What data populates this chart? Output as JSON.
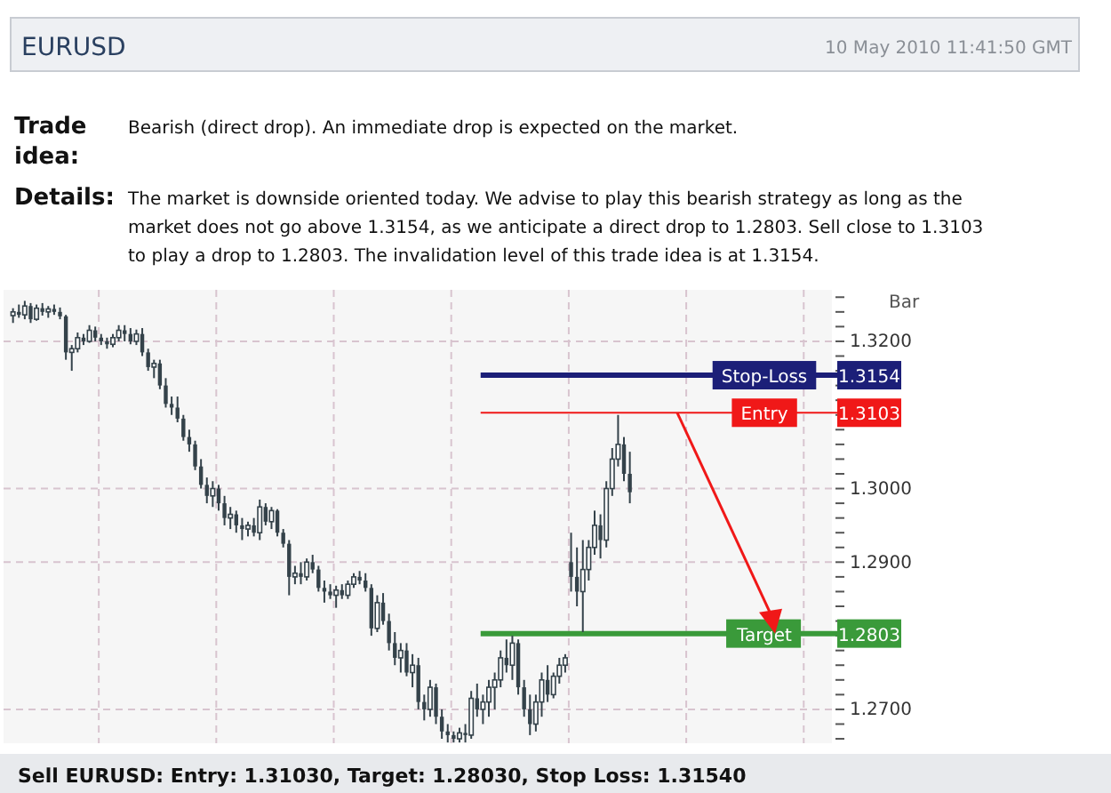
{
  "chart_data": {
    "type": "candlestick",
    "title": "EURUSD",
    "subtitle": "10 May 2010 11:41:50 GMT",
    "annotations": [
      "Trade idea:",
      "Bearish (direct drop). An immediate drop is expected on the market.",
      "Details:",
      "The market is downside oriented today. We advise to play this bearish strategy as long as the market does not go above 1.3154, as we anticipate a direct drop to 1.2803. Sell close to 1.3103 to play a drop to 1.2803. The invalidation level of this trade idea is at 1.3154.",
      "Bar",
      "Sell EURUSD: Entry: 1.31030, Target: 1.28030, Stop Loss: 1.31540",
      {
        "text": "1.3154",
        "y": 1.3154
      },
      {
        "text": "1.3103",
        "y": 1.3103
      },
      {
        "text": "1.2803",
        "y": 1.2803
      }
    ],
    "color": "#34424a",
    "categories": [
      null,
      null,
      null,
      null,
      null,
      null,
      null,
      null,
      null,
      null,
      null,
      null,
      null,
      null,
      null,
      null,
      null,
      null,
      null,
      null,
      null,
      null,
      null,
      null,
      null,
      null,
      null,
      null,
      null,
      null,
      null,
      null,
      null,
      null,
      null,
      null,
      null,
      null,
      null,
      null,
      null,
      null,
      null,
      null,
      null,
      null,
      null,
      null,
      null,
      null,
      null,
      null,
      null,
      null,
      null,
      null,
      null,
      null,
      null,
      null,
      null,
      null,
      null,
      null,
      null,
      null,
      null,
      null,
      null,
      null,
      null,
      null,
      null,
      null,
      null,
      null,
      null,
      null,
      null,
      null,
      null,
      null,
      null,
      null,
      null,
      null,
      null,
      null,
      null,
      null,
      null,
      null,
      null,
      null,
      null,
      null,
      null,
      null,
      null,
      null,
      null,
      null,
      null,
      null,
      null,
      null,
      null,
      null,
      null,
      null,
      null,
      null,
      null,
      null,
      null,
      null,
      null,
      null,
      null,
      null,
      null,
      null,
      null,
      null,
      null,
      null,
      null,
      null,
      null,
      null,
      null,
      null,
      null,
      null,
      null,
      null,
      null,
      null,
      null,
      null
    ],
    "ohlc": [
      [
        1.3235,
        1.3245,
        1.3225,
        1.324
      ],
      [
        1.324,
        1.325,
        1.3232,
        1.3236
      ],
      [
        1.3236,
        1.3255,
        1.323,
        1.3248
      ],
      [
        1.3248,
        1.3252,
        1.3225,
        1.323
      ],
      [
        1.323,
        1.325,
        1.3228,
        1.3245
      ],
      [
        1.3245,
        1.3252,
        1.3235,
        1.324
      ],
      [
        1.324,
        1.3248,
        1.3232,
        1.3244
      ],
      [
        1.3244,
        1.325,
        1.3236,
        1.324
      ],
      [
        1.324,
        1.3246,
        1.323,
        1.3234
      ],
      [
        1.3234,
        1.3236,
        1.3175,
        1.3185
      ],
      [
        1.3185,
        1.3195,
        1.316,
        1.319
      ],
      [
        1.319,
        1.3212,
        1.3185,
        1.3205
      ],
      [
        1.3205,
        1.321,
        1.3195,
        1.32
      ],
      [
        1.32,
        1.3222,
        1.3198,
        1.3215
      ],
      [
        1.3215,
        1.322,
        1.32,
        1.3205
      ],
      [
        1.3205,
        1.321,
        1.3195,
        1.32
      ],
      [
        1.32,
        1.3205,
        1.319,
        1.3196
      ],
      [
        1.3196,
        1.321,
        1.3192,
        1.3205
      ],
      [
        1.3205,
        1.3222,
        1.32,
        1.3215
      ],
      [
        1.3215,
        1.3222,
        1.32,
        1.321
      ],
      [
        1.321,
        1.3218,
        1.3196,
        1.32
      ],
      [
        1.32,
        1.3216,
        1.3195,
        1.321
      ],
      [
        1.321,
        1.3218,
        1.318,
        1.3185
      ],
      [
        1.3185,
        1.319,
        1.316,
        1.3165
      ],
      [
        1.3165,
        1.3175,
        1.315,
        1.317
      ],
      [
        1.317,
        1.3175,
        1.3135,
        1.314
      ],
      [
        1.314,
        1.315,
        1.311,
        1.3115
      ],
      [
        1.3115,
        1.3125,
        1.31,
        1.311
      ],
      [
        1.311,
        1.3125,
        1.309,
        1.3095
      ],
      [
        1.3095,
        1.31,
        1.3065,
        1.307
      ],
      [
        1.307,
        1.308,
        1.305,
        1.306
      ],
      [
        1.306,
        1.3065,
        1.3025,
        1.303
      ],
      [
        1.303,
        1.304,
        1.3,
        1.3005
      ],
      [
        1.3005,
        1.3015,
        1.298,
        1.299
      ],
      [
        1.299,
        1.301,
        1.2975,
        1.3
      ],
      [
        1.3,
        1.3005,
        1.297,
        1.298
      ],
      [
        1.298,
        1.299,
        1.295,
        1.296
      ],
      [
        1.296,
        1.2975,
        1.2945,
        1.2965
      ],
      [
        1.2965,
        1.297,
        1.294,
        1.295
      ],
      [
        1.295,
        1.296,
        1.293,
        1.2945
      ],
      [
        1.2945,
        1.2955,
        1.2935,
        1.295
      ],
      [
        1.295,
        1.296,
        1.2935,
        1.294
      ],
      [
        1.294,
        1.2985,
        1.293,
        1.2975
      ],
      [
        1.2975,
        1.298,
        1.295,
        1.2955
      ],
      [
        1.2955,
        1.2975,
        1.2945,
        1.297
      ],
      [
        1.297,
        1.2972,
        1.2935,
        1.294
      ],
      [
        1.294,
        1.2945,
        1.292,
        1.2925
      ],
      [
        1.2925,
        1.293,
        1.2855,
        1.288
      ],
      [
        1.288,
        1.2895,
        1.287,
        1.2885
      ],
      [
        1.2885,
        1.29,
        1.287,
        1.288
      ],
      [
        1.288,
        1.2905,
        1.2875,
        1.29
      ],
      [
        1.29,
        1.291,
        1.2885,
        1.289
      ],
      [
        1.289,
        1.2895,
        1.286,
        1.2865
      ],
      [
        1.2865,
        1.2875,
        1.2845,
        1.286
      ],
      [
        1.286,
        1.287,
        1.285,
        1.2855
      ],
      [
        1.2855,
        1.2868,
        1.2838,
        1.2862
      ],
      [
        1.2862,
        1.287,
        1.285,
        1.2855
      ],
      [
        1.2855,
        1.2875,
        1.285,
        1.287
      ],
      [
        1.287,
        1.2885,
        1.2865,
        1.288
      ],
      [
        1.288,
        1.2888,
        1.287,
        1.2875
      ],
      [
        1.2875,
        1.2885,
        1.286,
        1.2865
      ],
      [
        1.2865,
        1.287,
        1.28,
        1.281
      ],
      [
        1.281,
        1.2855,
        1.2805,
        1.2845
      ],
      [
        1.2845,
        1.2858,
        1.2815,
        1.282
      ],
      [
        1.282,
        1.283,
        1.278,
        1.279
      ],
      [
        1.279,
        1.2805,
        1.276,
        1.277
      ],
      [
        1.277,
        1.279,
        1.275,
        1.278
      ],
      [
        1.278,
        1.279,
        1.2745,
        1.275
      ],
      [
        1.275,
        1.2775,
        1.273,
        1.276
      ],
      [
        1.276,
        1.277,
        1.27,
        1.271
      ],
      [
        1.271,
        1.272,
        1.2685,
        1.27
      ],
      [
        1.27,
        1.274,
        1.269,
        1.273
      ],
      [
        1.273,
        1.2735,
        1.268,
        1.269
      ],
      [
        1.269,
        1.27,
        1.266,
        1.267
      ],
      [
        1.267,
        1.268,
        1.2655,
        1.2665
      ],
      [
        1.2665,
        1.267,
        1.2655,
        1.266
      ],
      [
        1.266,
        1.2675,
        1.2655,
        1.2668
      ],
      [
        1.2668,
        1.268,
        1.2655,
        1.2665
      ],
      [
        1.2665,
        1.2725,
        1.266,
        1.2715
      ],
      [
        1.2715,
        1.2735,
        1.269,
        1.27
      ],
      [
        1.27,
        1.272,
        1.268,
        1.271
      ],
      [
        1.271,
        1.274,
        1.269,
        1.273
      ],
      [
        1.273,
        1.275,
        1.27,
        1.274
      ],
      [
        1.274,
        1.278,
        1.273,
        1.277
      ],
      [
        1.277,
        1.2795,
        1.275,
        1.276
      ],
      [
        1.276,
        1.28,
        1.274,
        1.279
      ],
      [
        1.279,
        1.2795,
        1.272,
        1.273
      ],
      [
        1.273,
        1.274,
        1.269,
        1.27
      ],
      [
        1.27,
        1.272,
        1.2665,
        1.268
      ],
      [
        1.268,
        1.272,
        1.267,
        1.271
      ],
      [
        1.271,
        1.275,
        1.269,
        1.274
      ],
      [
        1.274,
        1.276,
        1.271,
        1.272
      ],
      [
        1.272,
        1.275,
        1.2715,
        1.2745
      ],
      [
        1.2745,
        1.277,
        1.2735,
        1.276
      ],
      [
        1.276,
        1.2775,
        1.275,
        1.277
      ],
      [
        1.29,
        1.294,
        1.286,
        1.288
      ],
      [
        1.288,
        1.292,
        1.284,
        1.286
      ],
      [
        1.286,
        1.293,
        1.2805,
        1.289
      ],
      [
        1.289,
        1.293,
        1.2875,
        1.292
      ],
      [
        1.292,
        1.297,
        1.291,
        1.295
      ],
      [
        1.295,
        1.2965,
        1.2905,
        1.293
      ],
      [
        1.293,
        1.301,
        1.292,
        1.3
      ],
      [
        1.3,
        1.3055,
        1.299,
        1.304
      ],
      [
        1.304,
        1.31,
        1.303,
        1.306
      ],
      [
        1.306,
        1.307,
        1.301,
        1.302
      ],
      [
        1.302,
        1.305,
        1.298,
        1.2995
      ],
      null,
      null,
      null,
      null,
      null,
      null,
      null,
      null,
      null,
      null,
      null,
      null,
      null,
      null,
      null,
      null,
      null,
      null,
      null,
      null,
      null,
      null,
      null,
      null,
      null,
      null,
      null,
      null,
      null,
      null,
      null,
      null,
      null,
      null
    ],
    "ylim": [
      1.2654,
      1.327
    ],
    "yticks": [
      {
        "value": 1.266,
        "label": null
      },
      {
        "value": 1.268,
        "label": null
      },
      {
        "value": 1.27,
        "label": "1.2700"
      },
      {
        "value": 1.272,
        "label": null
      },
      {
        "value": 1.274,
        "label": null
      },
      {
        "value": 1.276,
        "label": null
      },
      {
        "value": 1.278,
        "label": null
      },
      {
        "value": 1.28,
        "label": null
      },
      {
        "value": 1.282,
        "label": null
      },
      {
        "value": 1.284,
        "label": null
      },
      {
        "value": 1.286,
        "label": null
      },
      {
        "value": 1.288,
        "label": null
      },
      {
        "value": 1.29,
        "label": "1.2900"
      },
      {
        "value": 1.292,
        "label": null
      },
      {
        "value": 1.294,
        "label": null
      },
      {
        "value": 1.296,
        "label": null
      },
      {
        "value": 1.298,
        "label": null
      },
      {
        "value": 1.3,
        "label": "1.3000"
      },
      {
        "value": 1.302,
        "label": null
      },
      {
        "value": 1.304,
        "label": null
      },
      {
        "value": 1.306,
        "label": null
      },
      {
        "value": 1.308,
        "label": null
      },
      {
        "value": 1.31,
        "label": null
      },
      {
        "value": 1.312,
        "label": null
      },
      {
        "value": 1.314,
        "label": null
      },
      {
        "value": 1.316,
        "label": null
      },
      {
        "value": 1.318,
        "label": null
      },
      {
        "value": 1.32,
        "label": "1.3200"
      },
      {
        "value": 1.322,
        "label": null
      },
      {
        "value": 1.324,
        "label": null
      },
      {
        "value": 1.326,
        "label": null
      }
    ],
    "grid": true,
    "ref_lines": [
      {
        "axis": "y",
        "value": 1.3154,
        "label": "Stop-Loss",
        "color": "#1c1f78"
      },
      {
        "axis": "y",
        "value": 1.3103,
        "label": "Entry",
        "color": "#f01818"
      },
      {
        "axis": "y",
        "value": 1.2803,
        "label": "Target",
        "color": "#3a9a3a"
      }
    ]
  }
}
